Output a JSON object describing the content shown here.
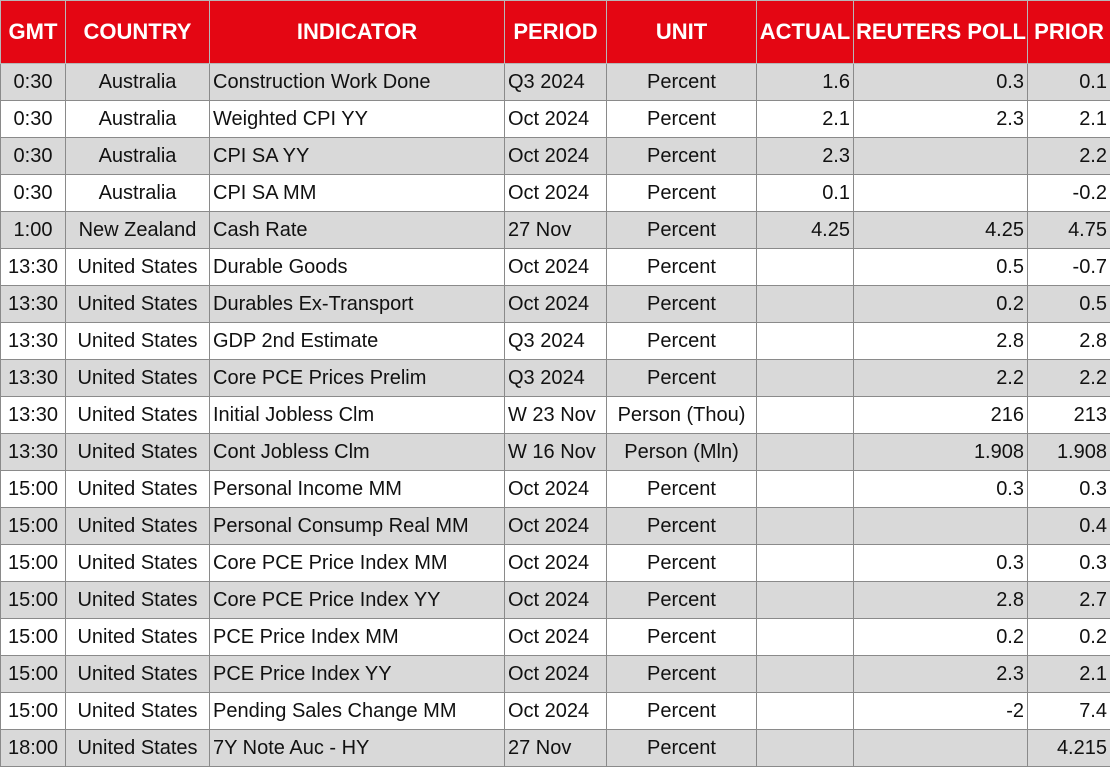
{
  "headers": [
    "GMT",
    "COUNTRY",
    "INDICATOR",
    "PERIOD",
    "UNIT",
    "ACTUAL",
    "REUTERS POLL",
    "PRIOR"
  ],
  "rows": [
    {
      "gmt": "0:30",
      "country": "Australia",
      "indicator": "Construction Work Done",
      "period": "Q3 2024",
      "unit": "Percent",
      "actual": "1.6",
      "poll": "0.3",
      "prior": "0.1"
    },
    {
      "gmt": "0:30",
      "country": "Australia",
      "indicator": "Weighted CPI YY",
      "period": "Oct 2024",
      "unit": "Percent",
      "actual": "2.1",
      "poll": "2.3",
      "prior": "2.1"
    },
    {
      "gmt": "0:30",
      "country": "Australia",
      "indicator": "CPI SA YY",
      "period": "Oct 2024",
      "unit": "Percent",
      "actual": "2.3",
      "poll": "",
      "prior": "2.2"
    },
    {
      "gmt": "0:30",
      "country": "Australia",
      "indicator": "CPI SA MM",
      "period": "Oct 2024",
      "unit": "Percent",
      "actual": "0.1",
      "poll": "",
      "prior": "-0.2"
    },
    {
      "gmt": "1:00",
      "country": "New Zealand",
      "indicator": "Cash Rate",
      "period": "27 Nov",
      "unit": "Percent",
      "actual": "4.25",
      "poll": "4.25",
      "prior": "4.75"
    },
    {
      "gmt": "13:30",
      "country": "United States",
      "indicator": "Durable Goods",
      "period": "Oct 2024",
      "unit": "Percent",
      "actual": "",
      "poll": "0.5",
      "prior": "-0.7"
    },
    {
      "gmt": "13:30",
      "country": "United States",
      "indicator": "Durables Ex-Transport",
      "period": "Oct 2024",
      "unit": "Percent",
      "actual": "",
      "poll": "0.2",
      "prior": "0.5"
    },
    {
      "gmt": "13:30",
      "country": "United States",
      "indicator": "GDP 2nd Estimate",
      "period": "Q3 2024",
      "unit": "Percent",
      "actual": "",
      "poll": "2.8",
      "prior": "2.8"
    },
    {
      "gmt": "13:30",
      "country": "United States",
      "indicator": "Core PCE Prices Prelim",
      "period": "Q3 2024",
      "unit": "Percent",
      "actual": "",
      "poll": "2.2",
      "prior": "2.2"
    },
    {
      "gmt": "13:30",
      "country": "United States",
      "indicator": "Initial Jobless Clm",
      "period": "W 23 Nov",
      "unit": "Person (Thou)",
      "actual": "",
      "poll": "216",
      "prior": "213"
    },
    {
      "gmt": "13:30",
      "country": "United States",
      "indicator": "Cont Jobless Clm",
      "period": "W 16 Nov",
      "unit": "Person (Mln)",
      "actual": "",
      "poll": "1.908",
      "prior": "1.908"
    },
    {
      "gmt": "15:00",
      "country": "United States",
      "indicator": "Personal Income MM",
      "period": "Oct 2024",
      "unit": "Percent",
      "actual": "",
      "poll": "0.3",
      "prior": "0.3"
    },
    {
      "gmt": "15:00",
      "country": "United States",
      "indicator": "Personal Consump Real MM",
      "period": "Oct 2024",
      "unit": "Percent",
      "actual": "",
      "poll": "",
      "prior": "0.4"
    },
    {
      "gmt": "15:00",
      "country": "United States",
      "indicator": "Core PCE Price Index MM",
      "period": "Oct 2024",
      "unit": "Percent",
      "actual": "",
      "poll": "0.3",
      "prior": "0.3"
    },
    {
      "gmt": "15:00",
      "country": "United States",
      "indicator": "Core PCE Price Index YY",
      "period": "Oct 2024",
      "unit": "Percent",
      "actual": "",
      "poll": "2.8",
      "prior": "2.7"
    },
    {
      "gmt": "15:00",
      "country": "United States",
      "indicator": "PCE Price Index MM",
      "period": "Oct 2024",
      "unit": "Percent",
      "actual": "",
      "poll": "0.2",
      "prior": "0.2"
    },
    {
      "gmt": "15:00",
      "country": "United States",
      "indicator": "PCE Price Index YY",
      "period": "Oct 2024",
      "unit": "Percent",
      "actual": "",
      "poll": "2.3",
      "prior": "2.1"
    },
    {
      "gmt": "15:00",
      "country": "United States",
      "indicator": "Pending Sales Change MM",
      "period": "Oct 2024",
      "unit": "Percent",
      "actual": "",
      "poll": "-2",
      "prior": "7.4"
    },
    {
      "gmt": "18:00",
      "country": "United States",
      "indicator": "7Y Note Auc - HY",
      "period": "27 Nov",
      "unit": "Percent",
      "actual": "",
      "poll": "",
      "prior": "4.215"
    }
  ],
  "colors": {
    "header_bg": "#e40613",
    "header_text": "#ffffff",
    "row_alt": "#d9d9d9",
    "row": "#ffffff"
  }
}
